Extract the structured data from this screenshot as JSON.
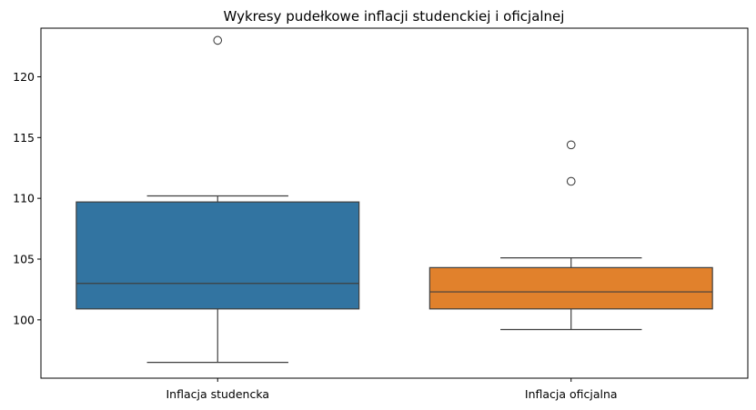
{
  "chart_data": {
    "type": "box",
    "title": "Wykresy pudełkowe inflacji studenckiej i oficjalnej",
    "xlabel": "",
    "ylabel": "",
    "categories": [
      "Inflacja studencka",
      "Inflacja oficjalna"
    ],
    "yticks": [
      100,
      105,
      110,
      115,
      120
    ],
    "ylim": [
      95.2,
      124.0
    ],
    "grid": false,
    "legend": "none",
    "boxes": [
      {
        "category": "Inflacja studencka",
        "color": "#3274a1",
        "whisker_low": 96.5,
        "q1": 100.9,
        "median": 103.0,
        "q3": 109.7,
        "whisker_high": 110.2,
        "outliers": [
          123.0
        ]
      },
      {
        "category": "Inflacja oficjalna",
        "color": "#e1812c",
        "whisker_low": 99.2,
        "q1": 100.9,
        "median": 102.3,
        "q3": 104.3,
        "whisker_high": 105.1,
        "outliers": [
          114.4,
          111.4
        ]
      }
    ]
  }
}
